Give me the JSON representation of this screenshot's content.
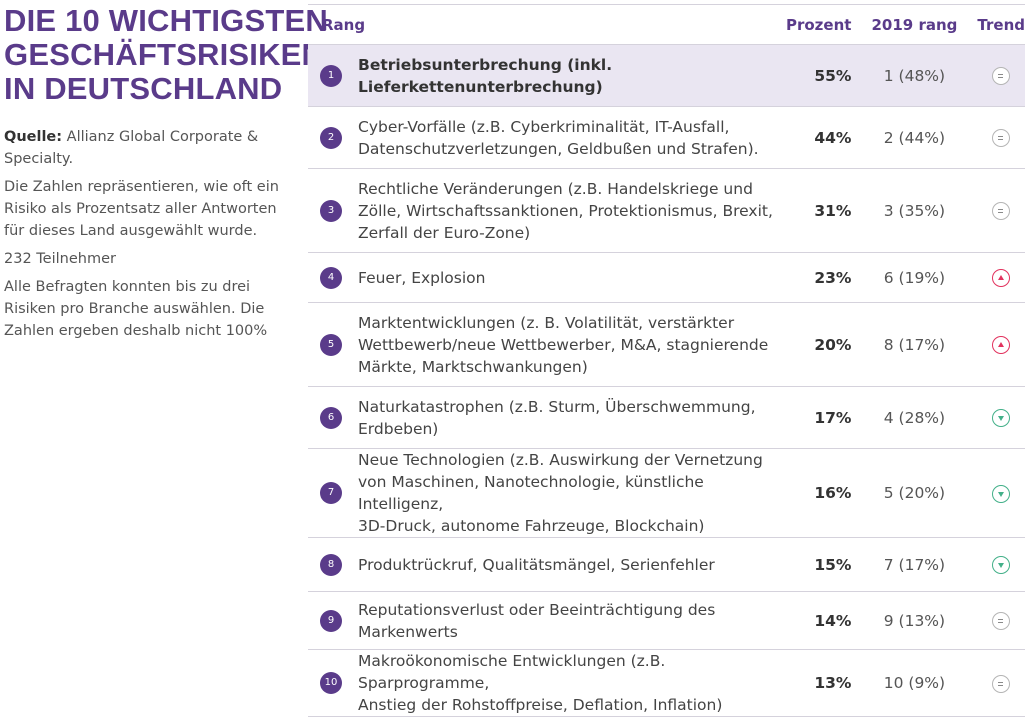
{
  "title_lines": [
    "DIE 10 WICHTIGSTEN",
    "GESCHÄFTSRISIKEN",
    "IN DEUTSCHLAND"
  ],
  "info": {
    "source_label": "Quelle:",
    "source_text": " Allianz Global Corporate & Specialty.",
    "note_percent": "Die Zahlen repräsentieren, wie oft ein Risiko als Prozentsatz aller Antworten für dieses Land ausgewählt wurde.",
    "participants": "232 Teilnehmer",
    "note_limit": "Alle Befragten konnten bis zu drei Risiken pro Branche auswählen. Die Zahlen ergeben deshalb nicht 100%"
  },
  "table": {
    "headers": {
      "rank": "Rang",
      "percent": "Prozent",
      "prev": "2019 rang",
      "trend": "Trend"
    },
    "rows": [
      {
        "num": "1",
        "lines": [
          "Betriebsunterbrechung (inkl.",
          "Lieferkettenunterbrechung)"
        ],
        "percent": "55%",
        "prev": "1 (48%)",
        "trend": "equal"
      },
      {
        "num": "2",
        "lines": [
          "Cyber-Vorfälle (z.B. Cyberkriminalität, IT-Ausfall,",
          "Datenschutzverletzungen, Geldbußen und Strafen)."
        ],
        "percent": "44%",
        "prev": "2 (44%)",
        "trend": "equal"
      },
      {
        "num": "3",
        "lines": [
          "Rechtliche Veränderungen (z.B. Handelskriege und",
          "Zölle, Wirtschaftssanktionen, Protektionismus, Brexit,",
          "Zerfall der Euro-Zone)"
        ],
        "percent": "31%",
        "prev": "3 (35%)",
        "trend": "equal"
      },
      {
        "num": "4",
        "lines": [
          "Feuer, Explosion"
        ],
        "percent": "23%",
        "prev": "6 (19%)",
        "trend": "up"
      },
      {
        "num": "5",
        "lines": [
          "Marktentwicklungen (z. B. Volatilität, verstärkter",
          "Wettbewerb/neue Wettbewerber, M&A, stagnierende",
          "Märkte, Marktschwankungen)"
        ],
        "percent": "20%",
        "prev": "8 (17%)",
        "trend": "up"
      },
      {
        "num": "6",
        "lines": [
          "Naturkatastrophen (z.B. Sturm, Überschwemmung,",
          "Erdbeben)"
        ],
        "percent": "17%",
        "prev": "4 (28%)",
        "trend": "down"
      },
      {
        "num": "7",
        "lines": [
          "Neue Technologien (z.B. Auswirkung der Vernetzung",
          "von Maschinen, Nanotechnologie, künstliche Intelligenz,",
          "3D-Druck, autonome Fahrzeuge, Blockchain)"
        ],
        "percent": "16%",
        "prev": "5 (20%)",
        "trend": "down"
      },
      {
        "num": "8",
        "lines": [
          "Produktrückruf, Qualitätsmängel, Serienfehler"
        ],
        "percent": "15%",
        "prev": "7 (17%)",
        "trend": "down"
      },
      {
        "num": "9",
        "lines": [
          "Reputationsverlust oder Beeinträchtigung des",
          "Markenwerts"
        ],
        "percent": "14%",
        "prev": "9 (13%)",
        "trend": "equal"
      },
      {
        "num": "10",
        "lines": [
          "Makroökonomische Entwicklungen (z.B. Sparprogramme,",
          "Anstieg der Rohstoffpreise, Deflation, Inflation)"
        ],
        "percent": "13%",
        "prev": "10 (9%)",
        "trend": "equal"
      }
    ]
  }
}
